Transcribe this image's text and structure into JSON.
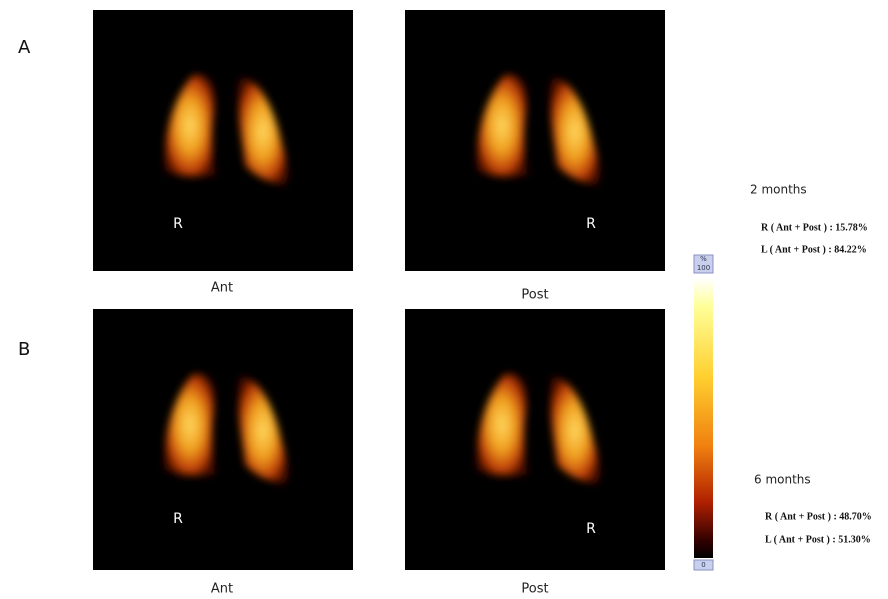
{
  "panels": [
    {
      "label": "A",
      "time": "2 months",
      "images": [
        {
          "marker": "R",
          "caption": "Ant"
        },
        {
          "marker": "R",
          "caption": "Post"
        }
      ],
      "results": [
        "R ( Ant + Post ) : 15.78%",
        "L ( Ant + Post ) : 84.22%"
      ]
    },
    {
      "label": "B",
      "time": "6 months",
      "images": [
        {
          "marker": "R",
          "caption": "Ant"
        },
        {
          "marker": "R",
          "caption": "Post"
        }
      ],
      "results": [
        "R ( Ant + Post ) : 48.70%",
        "L ( Ant + Post ) : 51.30%"
      ]
    }
  ],
  "colorbar": {
    "unit": "%",
    "max": 100,
    "min": 0
  }
}
